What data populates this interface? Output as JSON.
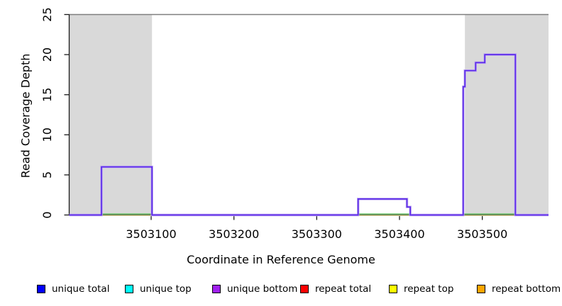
{
  "chart_data": {
    "type": "line",
    "step": true,
    "title": "",
    "xlabel": "Coordinate in Reference Genome",
    "ylabel": "Read Coverage Depth",
    "xlim": [
      3503001,
      3503580
    ],
    "ylim": [
      0,
      25
    ],
    "x_ticks": [
      3503100,
      3503200,
      3503300,
      3503400,
      3503500
    ],
    "y_ticks": [
      0,
      5,
      10,
      15,
      20,
      25
    ],
    "grid": false,
    "legend_position": "bottom",
    "cap_line_y": 25,
    "shaded_regions": [
      {
        "start": 3503001,
        "end": 3503101
      },
      {
        "start": 3503479,
        "end": 3503580
      }
    ],
    "series": [
      {
        "name": "unique bottom coverage",
        "color": "#5B2BE8",
        "halo_color": "#BCA4F2",
        "points": [
          [
            3503001,
            0
          ],
          [
            3503040,
            0
          ],
          [
            3503040,
            6
          ],
          [
            3503101,
            6
          ],
          [
            3503101,
            0
          ],
          [
            3503350,
            0
          ],
          [
            3503350,
            2
          ],
          [
            3503409,
            2
          ],
          [
            3503409,
            1
          ],
          [
            3503413,
            1
          ],
          [
            3503413,
            0
          ],
          [
            3503477,
            0
          ],
          [
            3503477,
            16
          ],
          [
            3503479,
            16
          ],
          [
            3503479,
            18
          ],
          [
            3503492,
            18
          ],
          [
            3503492,
            19
          ],
          [
            3503503,
            19
          ],
          [
            3503503,
            20
          ],
          [
            3503540,
            20
          ],
          [
            3503540,
            0
          ],
          [
            3503580,
            0
          ]
        ]
      }
    ],
    "zero_line_segments": [
      {
        "start": 3503040,
        "end": 3503101
      },
      {
        "start": 3503350,
        "end": 3503413
      },
      {
        "start": 3503477,
        "end": 3503540
      }
    ],
    "colors": {
      "shade": "#D9D9D9",
      "cap_line": "#7F7F7F",
      "axis": "#1A1A1A",
      "zero_line_green": "#5CB85C",
      "zero_line_yellow": "#E6E69C"
    }
  },
  "legend": {
    "items": [
      {
        "label": "unique total",
        "color": "#0000FF"
      },
      {
        "label": "unique top",
        "color": "#00FFFF"
      },
      {
        "label": "unique bottom",
        "color": "#A020F0"
      },
      {
        "label": "repeat total",
        "color": "#FF0000"
      },
      {
        "label": "repeat top",
        "color": "#FFFF00"
      },
      {
        "label": "repeat bottom",
        "color": "#FFA500"
      }
    ]
  }
}
